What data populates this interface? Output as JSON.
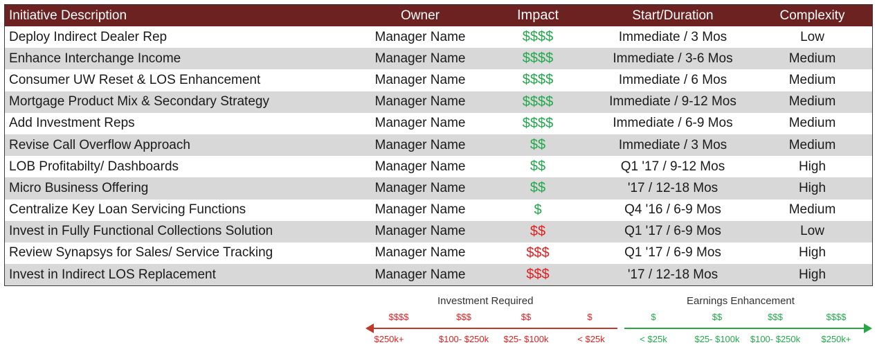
{
  "header": {
    "col1": "Initiative Description",
    "col2": "Owner",
    "col3": "Impact",
    "col4": "Start/Duration",
    "col5": "Complexity"
  },
  "rows": [
    {
      "desc": "Deploy Indirect Dealer Rep",
      "owner": "Manager Name",
      "impact": "$$$$",
      "impact_color": "green",
      "start": "Immediate / 3 Mos",
      "complexity": "Low"
    },
    {
      "desc": "Enhance Interchange Income",
      "owner": "Manager Name",
      "impact": "$$$$",
      "impact_color": "green",
      "start": "Immediate / 3-6 Mos",
      "complexity": "Medium"
    },
    {
      "desc": "Consumer UW Reset & LOS Enhancement",
      "owner": "Manager Name",
      "impact": "$$$$",
      "impact_color": "green",
      "start": "Immediate / 6 Mos",
      "complexity": "Medium"
    },
    {
      "desc": "Mortgage Product Mix & Secondary Strategy",
      "owner": "Manager Name",
      "impact": "$$$$",
      "impact_color": "green",
      "start": "Immediate / 9-12 Mos",
      "complexity": "Medium"
    },
    {
      "desc": "Add Investment Reps",
      "owner": "Manager Name",
      "impact": "$$$$",
      "impact_color": "green",
      "start": "Immediate / 6-9 Mos",
      "complexity": "Medium"
    },
    {
      "desc": "Revise Call Overflow Approach",
      "owner": "Manager Name",
      "impact": "$$",
      "impact_color": "green",
      "start": "Immediate / 3 Mos",
      "complexity": "Medium"
    },
    {
      "desc": "LOB Profitabilty/ Dashboards",
      "owner": "Manager Name",
      "impact": "$$",
      "impact_color": "green",
      "start": "Q1 '17 / 9-12 Mos",
      "complexity": "High"
    },
    {
      "desc": "Micro Business Offering",
      "owner": "Manager Name",
      "impact": "$$",
      "impact_color": "green",
      "start": "'17 / 12-18 Mos",
      "complexity": "High"
    },
    {
      "desc": "Centralize Key Loan Servicing Functions",
      "owner": "Manager Name",
      "impact": "$",
      "impact_color": "green",
      "start": "Q4 '16 / 6-9 Mos",
      "complexity": "Medium"
    },
    {
      "desc": "Invest in Fully Functional Collections Solution",
      "owner": "Manager Name",
      "impact": "$$",
      "impact_color": "red",
      "start": "Q1 '17 / 6-9 Mos",
      "complexity": "Low"
    },
    {
      "desc": "Review Synapsys for Sales/ Service Tracking",
      "owner": "Manager Name",
      "impact": "$$$",
      "impact_color": "red",
      "start": "Q1 '17 / 6-9 Mos",
      "complexity": "High"
    },
    {
      "desc": "Invest in Indirect LOS Replacement",
      "owner": "Manager Name",
      "impact": "$$$",
      "impact_color": "red",
      "start": "'17 / 12-18 Mos",
      "complexity": "High"
    }
  ],
  "legend": {
    "investment_title": "Investment Required",
    "earnings_title": "Earnings Enhancement",
    "investment": [
      {
        "sym": "$$$$",
        "val": "$250k+"
      },
      {
        "sym": "$$$",
        "val": "$100- $250k"
      },
      {
        "sym": "$$",
        "val": "$25- $100k"
      },
      {
        "sym": "$",
        "val": "< $25k"
      }
    ],
    "earnings": [
      {
        "sym": "$",
        "val": "< $25k"
      },
      {
        "sym": "$$",
        "val": "$25- $100k"
      },
      {
        "sym": "$$$",
        "val": "$100- $250k"
      },
      {
        "sym": "$$$$",
        "val": "$250k+"
      }
    ]
  },
  "colors": {
    "header_bg": "#6b2221",
    "positive": "#22a84a",
    "negative": "#e02020",
    "row_alt": "#d8d8d8"
  }
}
